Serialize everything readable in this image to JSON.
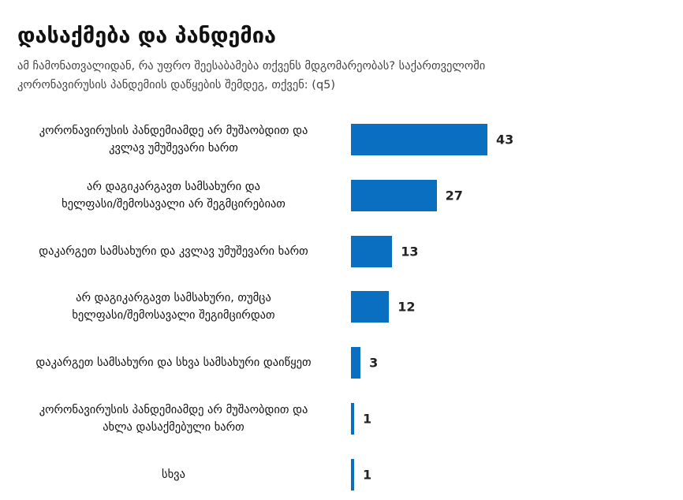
{
  "chart_data": {
    "type": "bar",
    "orientation": "horizontal",
    "title": "დასაქმება და პანდემია",
    "subtitle": "ამ ჩამონათვალიდან, რა უფრო შეესაბამება თქვენს მდგომარეობას? საქართველოში\nკორონავირუსის პანდემიის დაწყების შემდეგ, თქვენ: (q5)",
    "categories": [
      "კორონავირუსის პანდემიამდე არ მუშაობდით და\nკვლავ უმუშევარი ხართ",
      "არ დაგიკარგავთ სამსახური და\nხელფასი/შემოსავალი არ შეგმცირებიათ",
      "დაკარგეთ სამსახური და კვლავ უმუშევარი ხართ",
      "არ დაგიკარგავთ სამსახური, თუმცა\nხელფასი/შემოსავალი შეგიმცირდათ",
      "დაკარგეთ სამსახური და სხვა სამსახური დაიწყეთ",
      "კორონავირუსის პანდემიამდე არ მუშაობდით და\nახლა დასაქმებული ხართ",
      "სხვა"
    ],
    "values": [
      43,
      27,
      13,
      12,
      3,
      1,
      1
    ],
    "color": "#0b6fc1"
  }
}
